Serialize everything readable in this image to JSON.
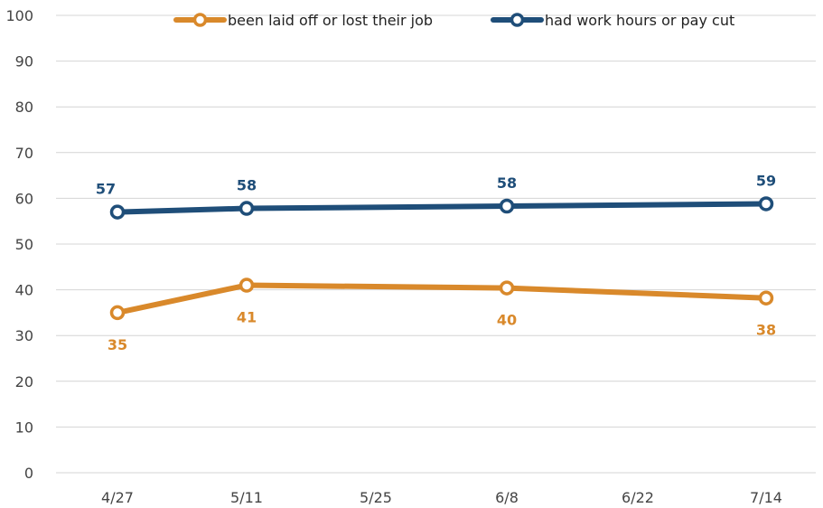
{
  "chart_data": {
    "type": "line",
    "x": [
      "4/27",
      "5/11",
      "5/25",
      "6/8",
      "6/22",
      "7/14"
    ],
    "x_dates": [
      "4/27",
      "5/11",
      "6/8",
      "7/14"
    ],
    "ylim": [
      0,
      100
    ],
    "yticks": [
      0,
      10,
      20,
      30,
      40,
      50,
      60,
      70,
      80,
      90,
      100
    ],
    "grid": true,
    "legend_position": "top",
    "series": [
      {
        "name": "been laid off or lost their job",
        "color": "#D9892B",
        "x": [
          "4/27",
          "5/11",
          "6/8",
          "7/14"
        ],
        "values": [
          35,
          41,
          40.4,
          38.2
        ],
        "labels": [
          "35",
          "41",
          "40",
          "38"
        ],
        "label_position": "below"
      },
      {
        "name": "had work hours or pay cut",
        "color": "#1F4E79",
        "x": [
          "4/27",
          "5/11",
          "6/8",
          "7/14"
        ],
        "values": [
          57,
          57.8,
          58.3,
          58.8
        ],
        "labels": [
          "57",
          "58",
          "58",
          "59"
        ],
        "label_position": "above"
      }
    ]
  }
}
